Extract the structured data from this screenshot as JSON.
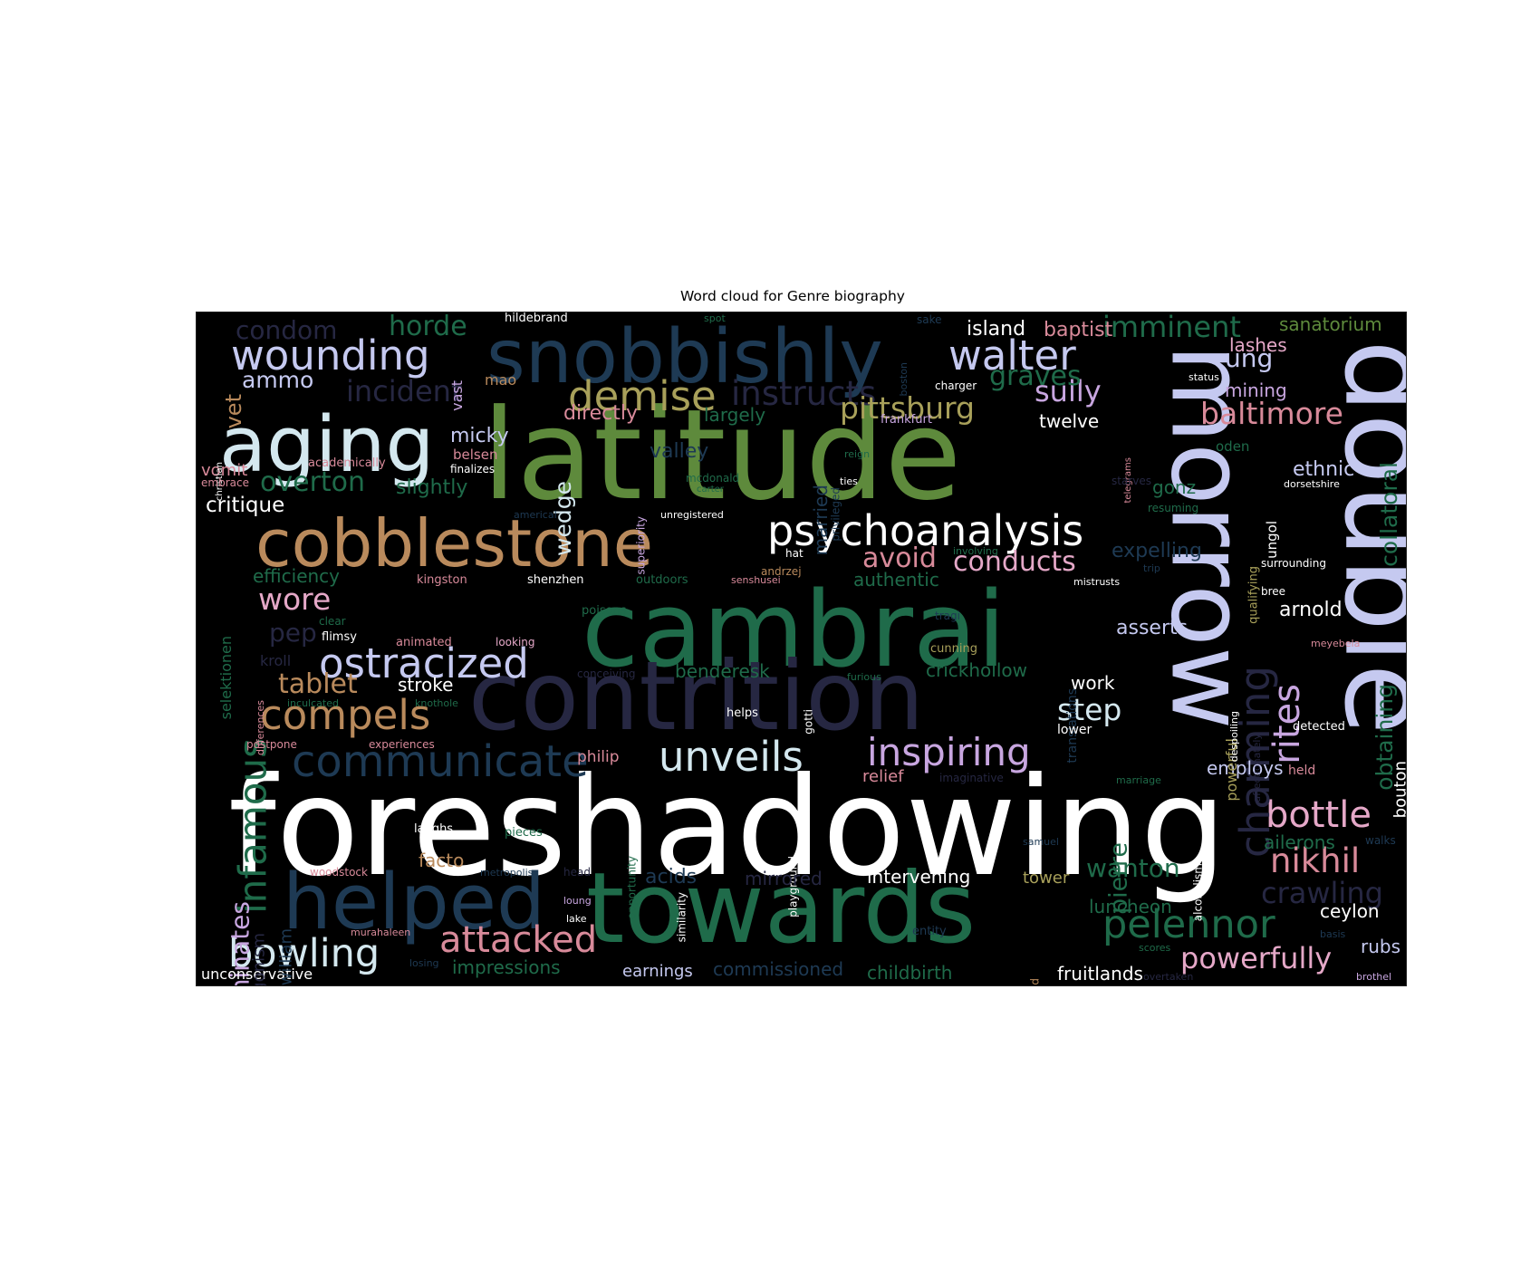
{
  "chart_data": {
    "type": "wordcloud",
    "title": "Word cloud for Genre biography",
    "background": "#000000",
    "words": [
      {
        "text": "foreshadowing",
        "color": "#ffffff"
      },
      {
        "text": "latitude",
        "color": "#5e8a3c"
      },
      {
        "text": "cambrai",
        "color": "#1f6b4a"
      },
      {
        "text": "towards",
        "color": "#1f6b4a"
      },
      {
        "text": "contrition",
        "color": "#262742"
      },
      {
        "text": "double",
        "color": "#c5c9f0"
      },
      {
        "text": "morrow",
        "color": "#c5c9f0"
      },
      {
        "text": "snobbishly",
        "color": "#1e3a54"
      },
      {
        "text": "cobblestone",
        "color": "#b98a5c"
      },
      {
        "text": "helped",
        "color": "#1e3a54"
      },
      {
        "text": "aging",
        "color": "#d4e8ef"
      },
      {
        "text": "psychoanalysis",
        "color": "#ffffff"
      },
      {
        "text": "communicate",
        "color": "#1e3a54"
      },
      {
        "text": "ostracized",
        "color": "#c5c9f0"
      },
      {
        "text": "wounding",
        "color": "#c5c9f0"
      },
      {
        "text": "walter",
        "color": "#c5c9f0"
      },
      {
        "text": "demise",
        "color": "#a8a05a"
      },
      {
        "text": "instructs",
        "color": "#262742"
      },
      {
        "text": "unveils",
        "color": "#d4e8ef"
      },
      {
        "text": "inspiring",
        "color": "#c8a6e0"
      },
      {
        "text": "compels",
        "color": "#b98a5c"
      },
      {
        "text": "bowling",
        "color": "#d4e8ef"
      },
      {
        "text": "attacked",
        "color": "#d88a9a"
      },
      {
        "text": "pelennor",
        "color": "#1f6b4a"
      },
      {
        "text": "infamous",
        "color": "#1f6b4a"
      },
      {
        "text": "bottle",
        "color": "#e5a8c8"
      },
      {
        "text": "nikhil",
        "color": "#d88a9a"
      },
      {
        "text": "rites",
        "color": "#c8a6e0"
      },
      {
        "text": "charming",
        "color": "#262742"
      },
      {
        "text": "powerfully",
        "color": "#e5a8c8"
      },
      {
        "text": "pittsburg",
        "color": "#a8a05a"
      },
      {
        "text": "baltimore",
        "color": "#d88a9a"
      },
      {
        "text": "imminent",
        "color": "#1f6b4a"
      },
      {
        "text": "horde",
        "color": "#1f6b4a"
      },
      {
        "text": "condom",
        "color": "#262742"
      },
      {
        "text": "incident",
        "color": "#262742"
      },
      {
        "text": "overton",
        "color": "#1f6b4a"
      },
      {
        "text": "tablet",
        "color": "#b98a5c"
      },
      {
        "text": "wore",
        "color": "#e5a8c8"
      },
      {
        "text": "avoid",
        "color": "#d88a9a"
      },
      {
        "text": "conducts",
        "color": "#e5a8c8"
      },
      {
        "text": "step",
        "color": "#d4e8ef"
      },
      {
        "text": "wanton",
        "color": "#1f6b4a"
      },
      {
        "text": "sully",
        "color": "#c8a6e0"
      },
      {
        "text": "graves",
        "color": "#1f6b4a"
      },
      {
        "text": "dominates",
        "color": "#c8a6e0"
      },
      {
        "text": "obtaining",
        "color": "#1f6b4a"
      },
      {
        "text": "collatoral",
        "color": "#1f6b4a"
      },
      {
        "text": "pierre",
        "color": "#1f6b4a"
      },
      {
        "text": "crawling",
        "color": "#262742"
      },
      {
        "text": "ung",
        "color": "#c5c9f0"
      },
      {
        "text": "wedge",
        "color": "#d4e8ef"
      },
      {
        "text": "critique",
        "color": "#ffffff"
      },
      {
        "text": "ammo",
        "color": "#c5c9f0"
      },
      {
        "text": "vet",
        "color": "#b98a5c"
      },
      {
        "text": "pep",
        "color": "#262742"
      },
      {
        "text": "island",
        "color": "#ffffff"
      },
      {
        "text": "baptist",
        "color": "#d88a9a"
      },
      {
        "text": "sanatorium",
        "color": "#5e8a3c"
      },
      {
        "text": "lashes",
        "color": "#e5a8c8"
      },
      {
        "text": "mining",
        "color": "#c8a6e0"
      },
      {
        "text": "ethnic",
        "color": "#c5c9f0"
      },
      {
        "text": "gonz",
        "color": "#1f6b4a"
      },
      {
        "text": "expelling",
        "color": "#1e3a54"
      },
      {
        "text": "asserts",
        "color": "#c5c9f0"
      },
      {
        "text": "arnold",
        "color": "#ffffff"
      },
      {
        "text": "micky",
        "color": "#c5c9f0"
      },
      {
        "text": "valley",
        "color": "#1e3a54"
      },
      {
        "text": "slightly",
        "color": "#1f6b4a"
      },
      {
        "text": "efficiency",
        "color": "#1f6b4a"
      },
      {
        "text": "married",
        "color": "#1e3a54"
      },
      {
        "text": "largely",
        "color": "#1f6b4a"
      },
      {
        "text": "directly",
        "color": "#d88a9a"
      },
      {
        "text": "twelve",
        "color": "#ffffff"
      },
      {
        "text": "stroke",
        "color": "#ffffff"
      },
      {
        "text": "authentic",
        "color": "#1f6b4a"
      },
      {
        "text": "benderesk",
        "color": "#1f6b4a"
      },
      {
        "text": "crickhollow",
        "color": "#1f6b4a"
      },
      {
        "text": "work",
        "color": "#ffffff"
      },
      {
        "text": "relief",
        "color": "#d88a9a"
      },
      {
        "text": "employs",
        "color": "#c5c9f0"
      },
      {
        "text": "ailerons",
        "color": "#1f6b4a"
      },
      {
        "text": "ceylon",
        "color": "#ffffff"
      },
      {
        "text": "rubs",
        "color": "#c5c9f0"
      },
      {
        "text": "fruitlands",
        "color": "#ffffff"
      },
      {
        "text": "luncheon",
        "color": "#1f6b4a"
      },
      {
        "text": "childbirth",
        "color": "#1f6b4a"
      },
      {
        "text": "commissioned",
        "color": "#1e3a54"
      },
      {
        "text": "earnings",
        "color": "#c5c9f0"
      },
      {
        "text": "impressions",
        "color": "#1f6b4a"
      },
      {
        "text": "intervening",
        "color": "#ffffff"
      },
      {
        "text": "acids",
        "color": "#1e3a54"
      },
      {
        "text": "tower",
        "color": "#a8a05a"
      },
      {
        "text": "facto",
        "color": "#b98a5c"
      },
      {
        "text": "philip",
        "color": "#d88a9a"
      },
      {
        "text": "unconservative",
        "color": "#ffffff"
      },
      {
        "text": "fitzwilliam",
        "color": "#1e3a54"
      },
      {
        "text": "antagonism",
        "color": "#262742"
      },
      {
        "text": "vomit",
        "color": "#d88a9a"
      },
      {
        "text": "selektionen",
        "color": "#1f6b4a"
      },
      {
        "text": "kroll",
        "color": "#262742"
      },
      {
        "text": "vast",
        "color": "#c8a6e0"
      },
      {
        "text": "mao",
        "color": "#b98a5c"
      },
      {
        "text": "belsen",
        "color": "#d88a9a"
      },
      {
        "text": "academically",
        "color": "#d88a9a"
      },
      {
        "text": "finalizes",
        "color": "#ffffff"
      },
      {
        "text": "hildebrand",
        "color": "#ffffff"
      },
      {
        "text": "spot",
        "color": "#1f6b4a"
      },
      {
        "text": "boston",
        "color": "#1e3a54"
      },
      {
        "text": "sake",
        "color": "#1e3a54"
      },
      {
        "text": "status",
        "color": "#ffffff"
      },
      {
        "text": "charger",
        "color": "#ffffff"
      },
      {
        "text": "frankfurt",
        "color": "#c8a6e0"
      },
      {
        "text": "oden",
        "color": "#1f6b4a"
      },
      {
        "text": "telegrams",
        "color": "#d88a9a"
      },
      {
        "text": "christian",
        "color": "#ffffff"
      },
      {
        "text": "embrace",
        "color": "#d88a9a"
      },
      {
        "text": "reign",
        "color": "#1f6b4a"
      },
      {
        "text": "ties",
        "color": "#ffffff"
      },
      {
        "text": "starves",
        "color": "#262742"
      },
      {
        "text": "dorsetshire",
        "color": "#ffffff"
      },
      {
        "text": "resuming",
        "color": "#1f6b4a"
      },
      {
        "text": "qualifying",
        "color": "#a8a05a"
      },
      {
        "text": "ungol",
        "color": "#ffffff"
      },
      {
        "text": "superiority",
        "color": "#c8a6e0"
      },
      {
        "text": "mcdonald",
        "color": "#1f6b4a"
      },
      {
        "text": "carter",
        "color": "#1f6b4a"
      },
      {
        "text": "privileged",
        "color": "#1e3a54"
      },
      {
        "text": "unregistered",
        "color": "#ffffff"
      },
      {
        "text": "americal",
        "color": "#1e3a54"
      },
      {
        "text": "hat",
        "color": "#ffffff"
      },
      {
        "text": "involving",
        "color": "#1f6b4a"
      },
      {
        "text": "surrounding",
        "color": "#ffffff"
      },
      {
        "text": "bree",
        "color": "#ffffff"
      },
      {
        "text": "trip",
        "color": "#1e3a54"
      },
      {
        "text": "mistrusts",
        "color": "#ffffff"
      },
      {
        "text": "kingston",
        "color": "#d88a9a"
      },
      {
        "text": "shenzhen",
        "color": "#ffffff"
      },
      {
        "text": "outdoors",
        "color": "#1f6b4a"
      },
      {
        "text": "senshusei",
        "color": "#d88a9a"
      },
      {
        "text": "andrzej",
        "color": "#b98a5c"
      },
      {
        "text": "clear",
        "color": "#1f6b4a"
      },
      {
        "text": "flimsy",
        "color": "#ffffff"
      },
      {
        "text": "poisons",
        "color": "#1f6b4a"
      },
      {
        "text": "tragi",
        "color": "#1e3a54"
      },
      {
        "text": "translations",
        "color": "#1e3a54"
      },
      {
        "text": "meyebela",
        "color": "#d88a9a"
      },
      {
        "text": "cunning",
        "color": "#a8a05a"
      },
      {
        "text": "animated",
        "color": "#d88a9a"
      },
      {
        "text": "looking",
        "color": "#e5a8c8"
      },
      {
        "text": "differences",
        "color": "#d88a9a"
      },
      {
        "text": "conceiving",
        "color": "#262742"
      },
      {
        "text": "gotti",
        "color": "#ffffff"
      },
      {
        "text": "furious",
        "color": "#1f6b4a"
      },
      {
        "text": "powerful",
        "color": "#a8a05a"
      },
      {
        "text": "despoiling",
        "color": "#ffffff"
      },
      {
        "text": "affectionately",
        "color": "#262742"
      },
      {
        "text": "bouton",
        "color": "#ffffff"
      },
      {
        "text": "detected",
        "color": "#ffffff"
      },
      {
        "text": "inculcated",
        "color": "#1f6b4a"
      },
      {
        "text": "knothole",
        "color": "#1f6b4a"
      },
      {
        "text": "helps",
        "color": "#ffffff"
      },
      {
        "text": "postpone",
        "color": "#d88a9a"
      },
      {
        "text": "experiences",
        "color": "#d88a9a"
      },
      {
        "text": "lower",
        "color": "#ffffff"
      },
      {
        "text": "imaginative",
        "color": "#262742"
      },
      {
        "text": "marriage",
        "color": "#1f6b4a"
      },
      {
        "text": "held",
        "color": "#d88a9a"
      },
      {
        "text": "laughs",
        "color": "#ffffff"
      },
      {
        "text": "pieces",
        "color": "#1f6b4a"
      },
      {
        "text": "opportunity",
        "color": "#1f6b4a"
      },
      {
        "text": "similarity",
        "color": "#ffffff"
      },
      {
        "text": "playground",
        "color": "#ffffff"
      },
      {
        "text": "mirrored",
        "color": "#262742"
      },
      {
        "text": "samuel",
        "color": "#1e3a54"
      },
      {
        "text": "alcoholism",
        "color": "#ffffff"
      },
      {
        "text": "walks",
        "color": "#1e3a54"
      },
      {
        "text": "woodstock",
        "color": "#d88a9a"
      },
      {
        "text": "metropolis",
        "color": "#1e3a54"
      },
      {
        "text": "loung",
        "color": "#c8a6e0"
      },
      {
        "text": "lake",
        "color": "#ffffff"
      },
      {
        "text": "murahaleen",
        "color": "#d88a9a"
      },
      {
        "text": "losing",
        "color": "#1e3a54"
      },
      {
        "text": "entity",
        "color": "#1e3a54"
      },
      {
        "text": "challenged",
        "color": "#b98a5c"
      },
      {
        "text": "basis",
        "color": "#1e3a54"
      },
      {
        "text": "scores",
        "color": "#1f6b4a"
      },
      {
        "text": "overtaken",
        "color": "#262742"
      },
      {
        "text": "brothel",
        "color": "#c8a6e0"
      },
      {
        "text": "head",
        "color": "#262742"
      }
    ]
  }
}
